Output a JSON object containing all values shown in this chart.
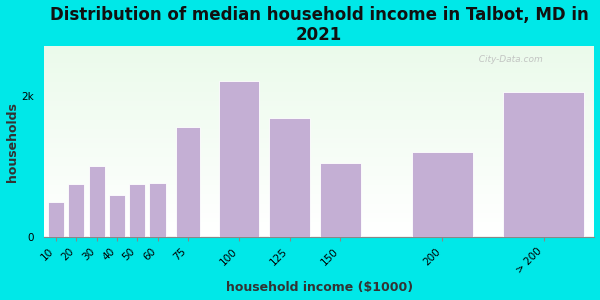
{
  "title": "Distribution of median household income in Talbot, MD in\n2021",
  "xlabel": "household income ($1000)",
  "ylabel": "households",
  "categories": [
    "10",
    "20",
    "30",
    "40",
    "50",
    "60",
    "75",
    "100",
    "125",
    "150",
    "200",
    "> 200"
  ],
  "values": [
    500,
    760,
    1000,
    600,
    760,
    770,
    1550,
    2200,
    1680,
    1050,
    1200,
    2050
  ],
  "bar_positions": [
    10,
    20,
    30,
    40,
    50,
    60,
    75,
    100,
    125,
    150,
    200,
    250
  ],
  "bar_widths": [
    8,
    8,
    8,
    8,
    8,
    8,
    12,
    20,
    20,
    20,
    30,
    40
  ],
  "bar_color": "#c4afd4",
  "bar_edge_color": "#ffffff",
  "bg_outer": "#00e8e8",
  "bg_plot_top": "#e6f5e6",
  "bg_plot_bottom": "#f8fdf8",
  "yticks": [
    0,
    2000
  ],
  "ytick_labels": [
    "0",
    "2k"
  ],
  "ylim": [
    0,
    2700
  ],
  "watermark": "  City-Data.com",
  "title_fontsize": 12,
  "axis_label_fontsize": 9,
  "tick_fontsize": 7.5
}
